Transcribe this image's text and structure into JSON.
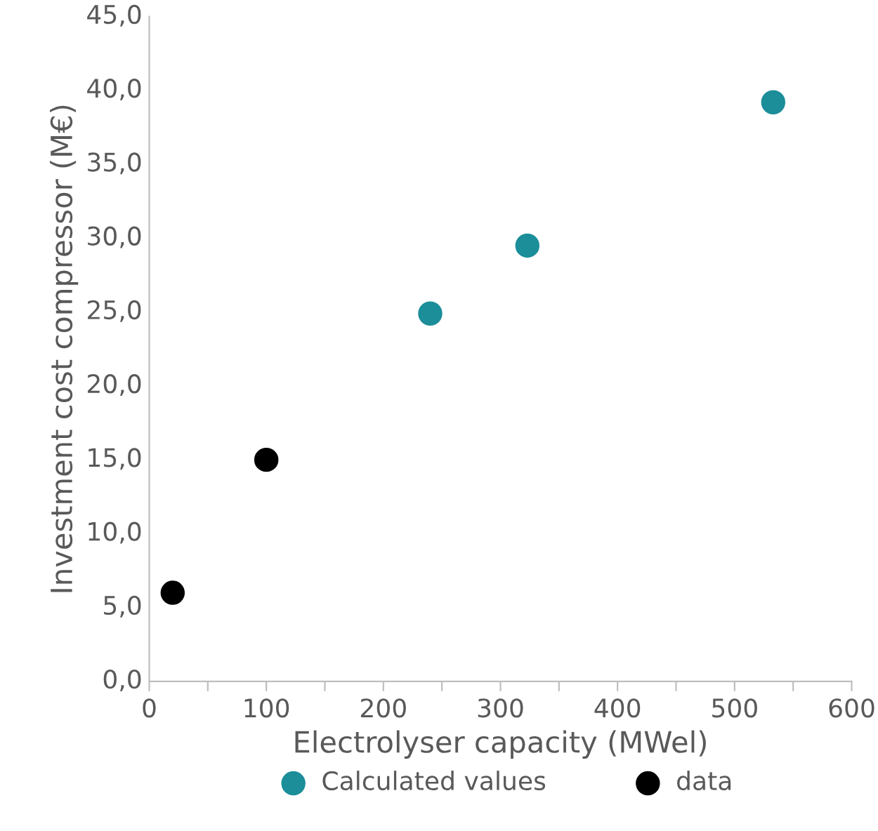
{
  "chart_data": {
    "type": "scatter",
    "xlabel": "Electrolyser capacity (MWel)",
    "ylabel": "Investment cost compressor (M€)",
    "series": [
      {
        "name": "Calculated values",
        "color": "#1b8e99",
        "x": [
          240,
          323,
          533
        ],
        "values": [
          24.9,
          29.5,
          39.2
        ]
      },
      {
        "name": "data",
        "color": "#000000",
        "x": [
          20,
          100
        ],
        "values": [
          6.0,
          15.0
        ]
      }
    ],
    "xlim": [
      0,
      600
    ],
    "ylim": [
      0,
      45
    ],
    "xticks": [
      0,
      {
        "value": 50,
        "label": null
      },
      100,
      {
        "value": 150,
        "label": null
      },
      200,
      {
        "value": 250,
        "label": null
      },
      300,
      {
        "value": 350,
        "label": null
      },
      400,
      {
        "value": 450,
        "label": null
      },
      500,
      {
        "value": 550,
        "label": null
      },
      600
    ],
    "yticks": [
      {
        "value": 0,
        "label": "0,0"
      },
      {
        "value": 5,
        "label": "5,0"
      },
      {
        "value": 10,
        "label": "10,0"
      },
      {
        "value": 15,
        "label": "15,0"
      },
      {
        "value": 20,
        "label": "20,0"
      },
      {
        "value": 25,
        "label": "25,0"
      },
      {
        "value": 30,
        "label": "30,0"
      },
      {
        "value": 35,
        "label": "35,0"
      },
      {
        "value": 40,
        "label": "40,0"
      },
      {
        "value": 45,
        "label": "45,0"
      }
    ],
    "marker": "circle",
    "legend": "bottom",
    "grid": false
  }
}
